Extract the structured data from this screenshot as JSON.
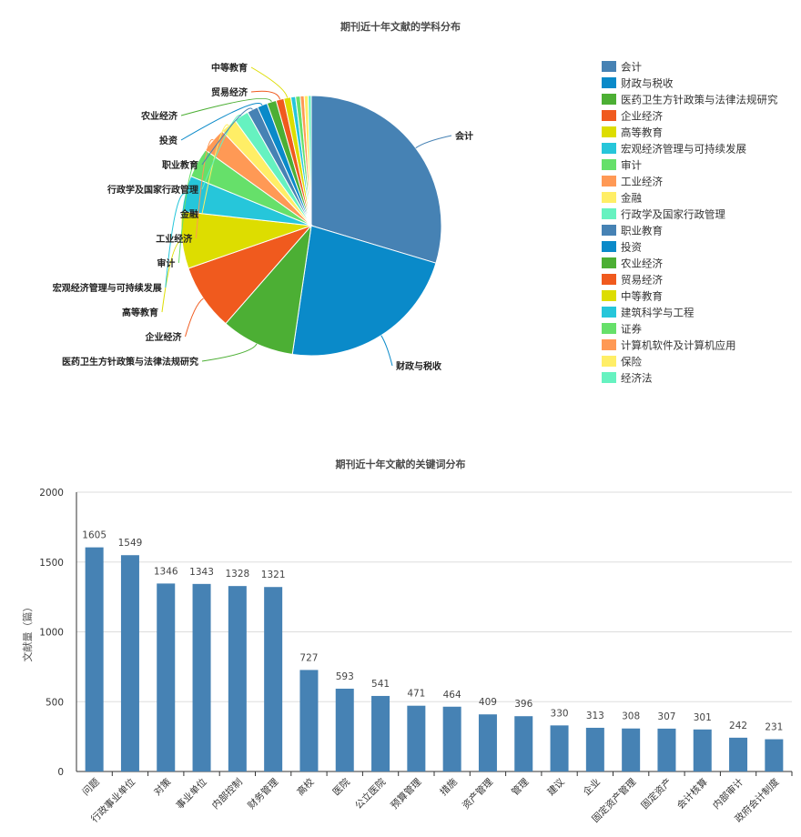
{
  "chart_data": [
    {
      "type": "pie",
      "title": "期刊近十年文献的学科分布",
      "series": [
        {
          "values": [
            30.6,
            23.4,
            9.4,
            8.5,
            7.3,
            4.6,
            3.8,
            3.2,
            2.1,
            1.9,
            1.4,
            1.3,
            1.2,
            1.0,
            0.9,
            0.6,
            0.6,
            0.5,
            0.5,
            0.4
          ]
        }
      ],
      "categories": [
        "会计",
        "财政与税收",
        "医药卫生方针政策与法律法规研究",
        "企业经济",
        "高等教育",
        "宏观经济管理与可持续发展",
        "审计",
        "工业经济",
        "金融",
        "行政学及国家行政管理",
        "职业教育",
        "投资",
        "农业经济",
        "贸易经济",
        "中等教育",
        "建筑科学与工程",
        "证券",
        "计算机软件及计算机应用",
        "保险",
        "经济法"
      ],
      "colors": [
        "#4682b4",
        "#0a8ac9",
        "#4caf34",
        "#f05a1e",
        "#dddd00",
        "#26c6da",
        "#66e06a",
        "#ff9955",
        "#ffee66",
        "#66f2c0",
        "#4682b4",
        "#0a8ac9",
        "#4caf34",
        "#f05a1e",
        "#dddd00",
        "#26c6da",
        "#66e06a",
        "#ff9955",
        "#ffee66",
        "#66f2c0"
      ],
      "outside_labels": [
        "会计",
        "财政与税收",
        "医药卫生方针政策与法律法规研究",
        "企业经济",
        "高等教育",
        "宏观经济管理与可持续发展",
        "审计",
        "工业经济",
        "金融",
        "行政学及国家行政管理",
        "职业教育",
        "投资",
        "农业经济",
        "贸易经济",
        "中等教育"
      ],
      "legend": "right"
    },
    {
      "type": "bar",
      "title": "期刊近十年文献的关键词分布",
      "categories": [
        "问题",
        "行政事业单位",
        "对策",
        "事业单位",
        "内部控制",
        "财务管理",
        "高校",
        "医院",
        "公立医院",
        "预算管理",
        "措施",
        "资产管理",
        "管理",
        "建议",
        "企业",
        "固定资产管理",
        "固定资产",
        "会计核算",
        "内部审计",
        "政府会计制度"
      ],
      "values": [
        1605,
        1549,
        1346,
        1343,
        1328,
        1321,
        727,
        593,
        541,
        471,
        464,
        409,
        396,
        330,
        313,
        308,
        307,
        301,
        242,
        231
      ],
      "ylabel": "文献量（篇）",
      "ylim": [
        0,
        2000
      ],
      "yticks": [
        0,
        500,
        1000,
        1500,
        2000
      ],
      "color": "#4682b4",
      "grid": true
    }
  ]
}
